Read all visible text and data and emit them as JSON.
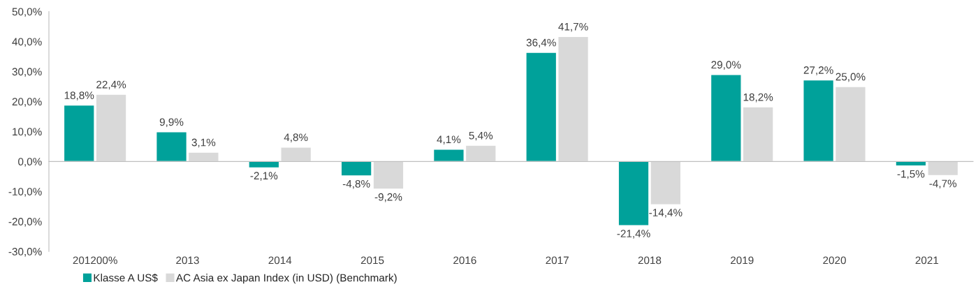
{
  "chart_data": {
    "type": "bar",
    "categories": [
      "201200%",
      "2013",
      "2014",
      "2015",
      "2016",
      "2017",
      "2018",
      "2019",
      "2020",
      "2021"
    ],
    "series": [
      {
        "name": "Klasse A US$",
        "color": "#00a19a",
        "values": [
          18.8,
          9.9,
          -2.1,
          -4.8,
          4.1,
          36.4,
          -21.4,
          29.0,
          27.2,
          -1.5
        ],
        "value_labels": [
          "18,8%",
          "9,9%",
          "-2,1%",
          "-4,8%",
          "4,1%",
          "36,4%",
          "-21,4%",
          "29,0%",
          "27,2%",
          "-1,5%"
        ]
      },
      {
        "name": "AC Asia ex Japan Index (in USD) (Benchmark)",
        "color": "#d9d9d9",
        "values": [
          22.4,
          3.1,
          4.8,
          -9.2,
          5.4,
          41.7,
          -14.4,
          18.2,
          25.0,
          -4.7
        ],
        "value_labels": [
          "22,4%",
          "3,1%",
          "4,8%",
          "-9,2%",
          "5,4%",
          "41,7%",
          "-14,4%",
          "18,2%",
          "25,0%",
          "-4,7%"
        ]
      }
    ],
    "ylim": [
      -30,
      50
    ],
    "yticks": [
      {
        "value": -30,
        "label": "-30,0%"
      },
      {
        "value": -20,
        "label": "-20,0%"
      },
      {
        "value": -10,
        "label": "-10,0%"
      },
      {
        "value": 0,
        "label": "0,0%"
      },
      {
        "value": 10,
        "label": "10,0%"
      },
      {
        "value": 20,
        "label": "20,0%"
      },
      {
        "value": 30,
        "label": "30,0%"
      },
      {
        "value": 40,
        "label": "40,0%"
      },
      {
        "value": 50,
        "label": "50,0%"
      }
    ],
    "legend": "bottom left"
  }
}
